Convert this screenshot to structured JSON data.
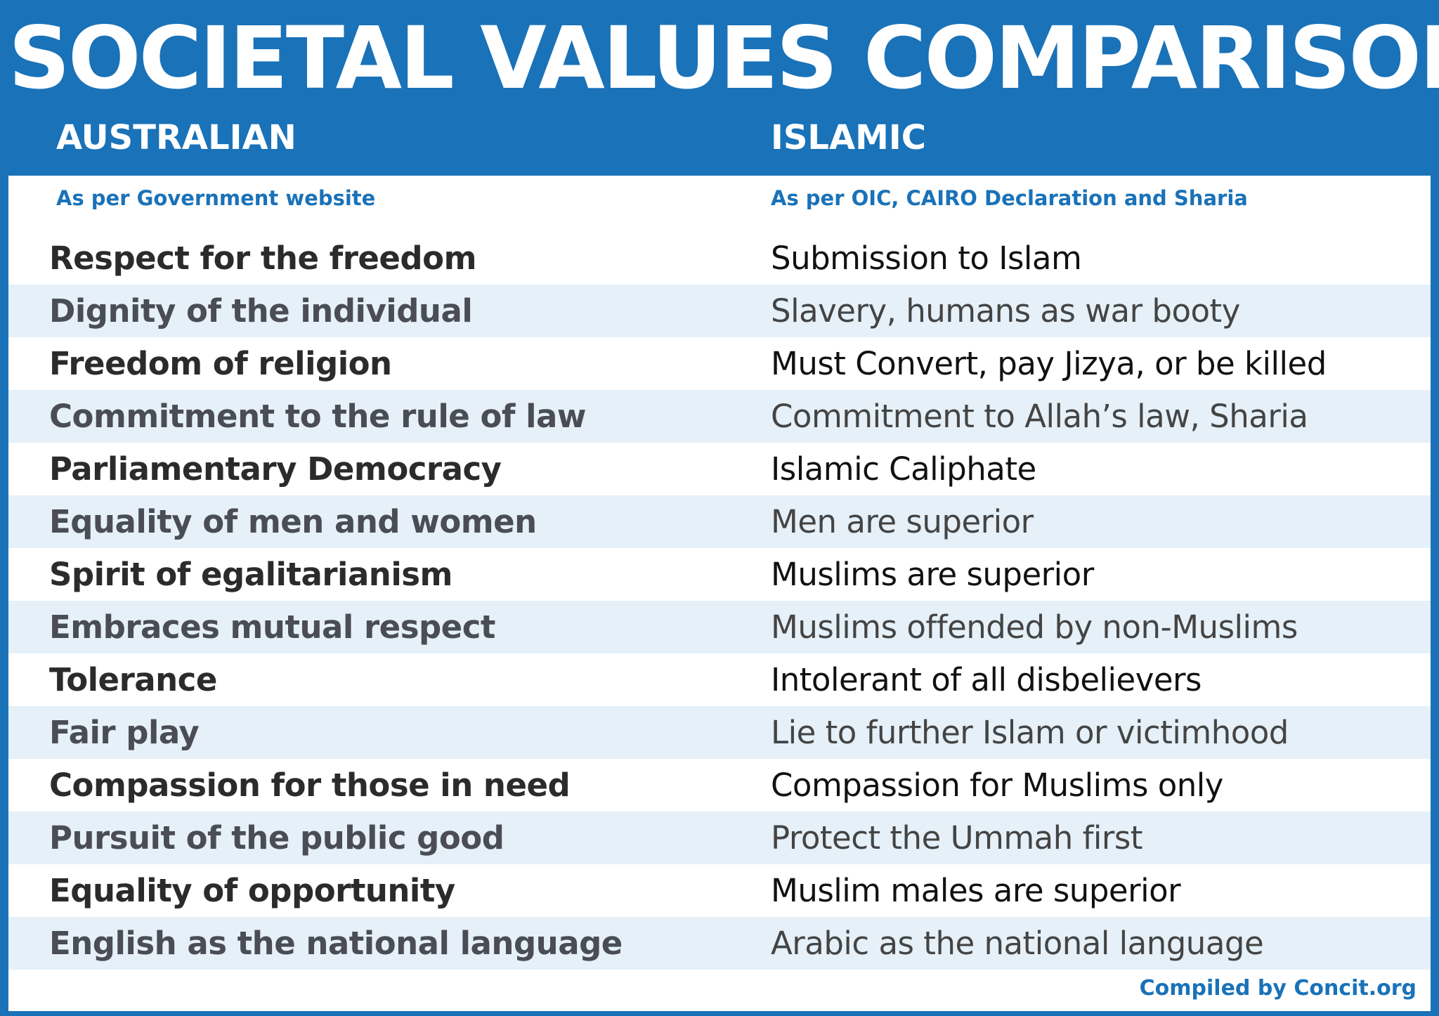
{
  "title": "SOCIETAL VALUES COMPARISON",
  "columns": {
    "left": {
      "heading": "AUSTRALIAN",
      "subheading": "As per Government website"
    },
    "right": {
      "heading": "ISLAMIC",
      "subheading": "As per OIC, CAIRO Declaration and Sharia"
    }
  },
  "rows": [
    {
      "australian": "Respect for the freedom",
      "islamic": "Submission to Islam"
    },
    {
      "australian": "Dignity of the individual",
      "islamic": "Slavery, humans as war booty"
    },
    {
      "australian": "Freedom of religion",
      "islamic": "Must Convert, pay Jizya, or be killed"
    },
    {
      "australian": "Commitment to the rule of law",
      "islamic": "Commitment to Allah’s law, Sharia"
    },
    {
      "australian": "Parliamentary Democracy",
      "islamic": "Islamic Caliphate"
    },
    {
      "australian": "Equality of men and women",
      "islamic": "Men are superior"
    },
    {
      "australian": "Spirit of egalitarianism",
      "islamic": "Muslims are superior"
    },
    {
      "australian": "Embraces mutual respect",
      "islamic": "Muslims offended by non-Muslims"
    },
    {
      "australian": "Tolerance",
      "islamic": "Intolerant of all disbelievers"
    },
    {
      "australian": "Fair play",
      "islamic": "Lie to further Islam or victimhood"
    },
    {
      "australian": "Compassion for those in need",
      "islamic": "Compassion for Muslims only"
    },
    {
      "australian": "Pursuit of the public good",
      "islamic": "Protect the Ummah first"
    },
    {
      "australian": "Equality of opportunity",
      "islamic": "Muslim males are superior"
    },
    {
      "australian": "English as the national language",
      "islamic": "Arabic as the national language"
    }
  ],
  "credit": "Compiled by Concit.org",
  "colors": {
    "brand_blue": "#1a72b8",
    "stripe": "#e5f0f8",
    "white": "#ffffff"
  }
}
